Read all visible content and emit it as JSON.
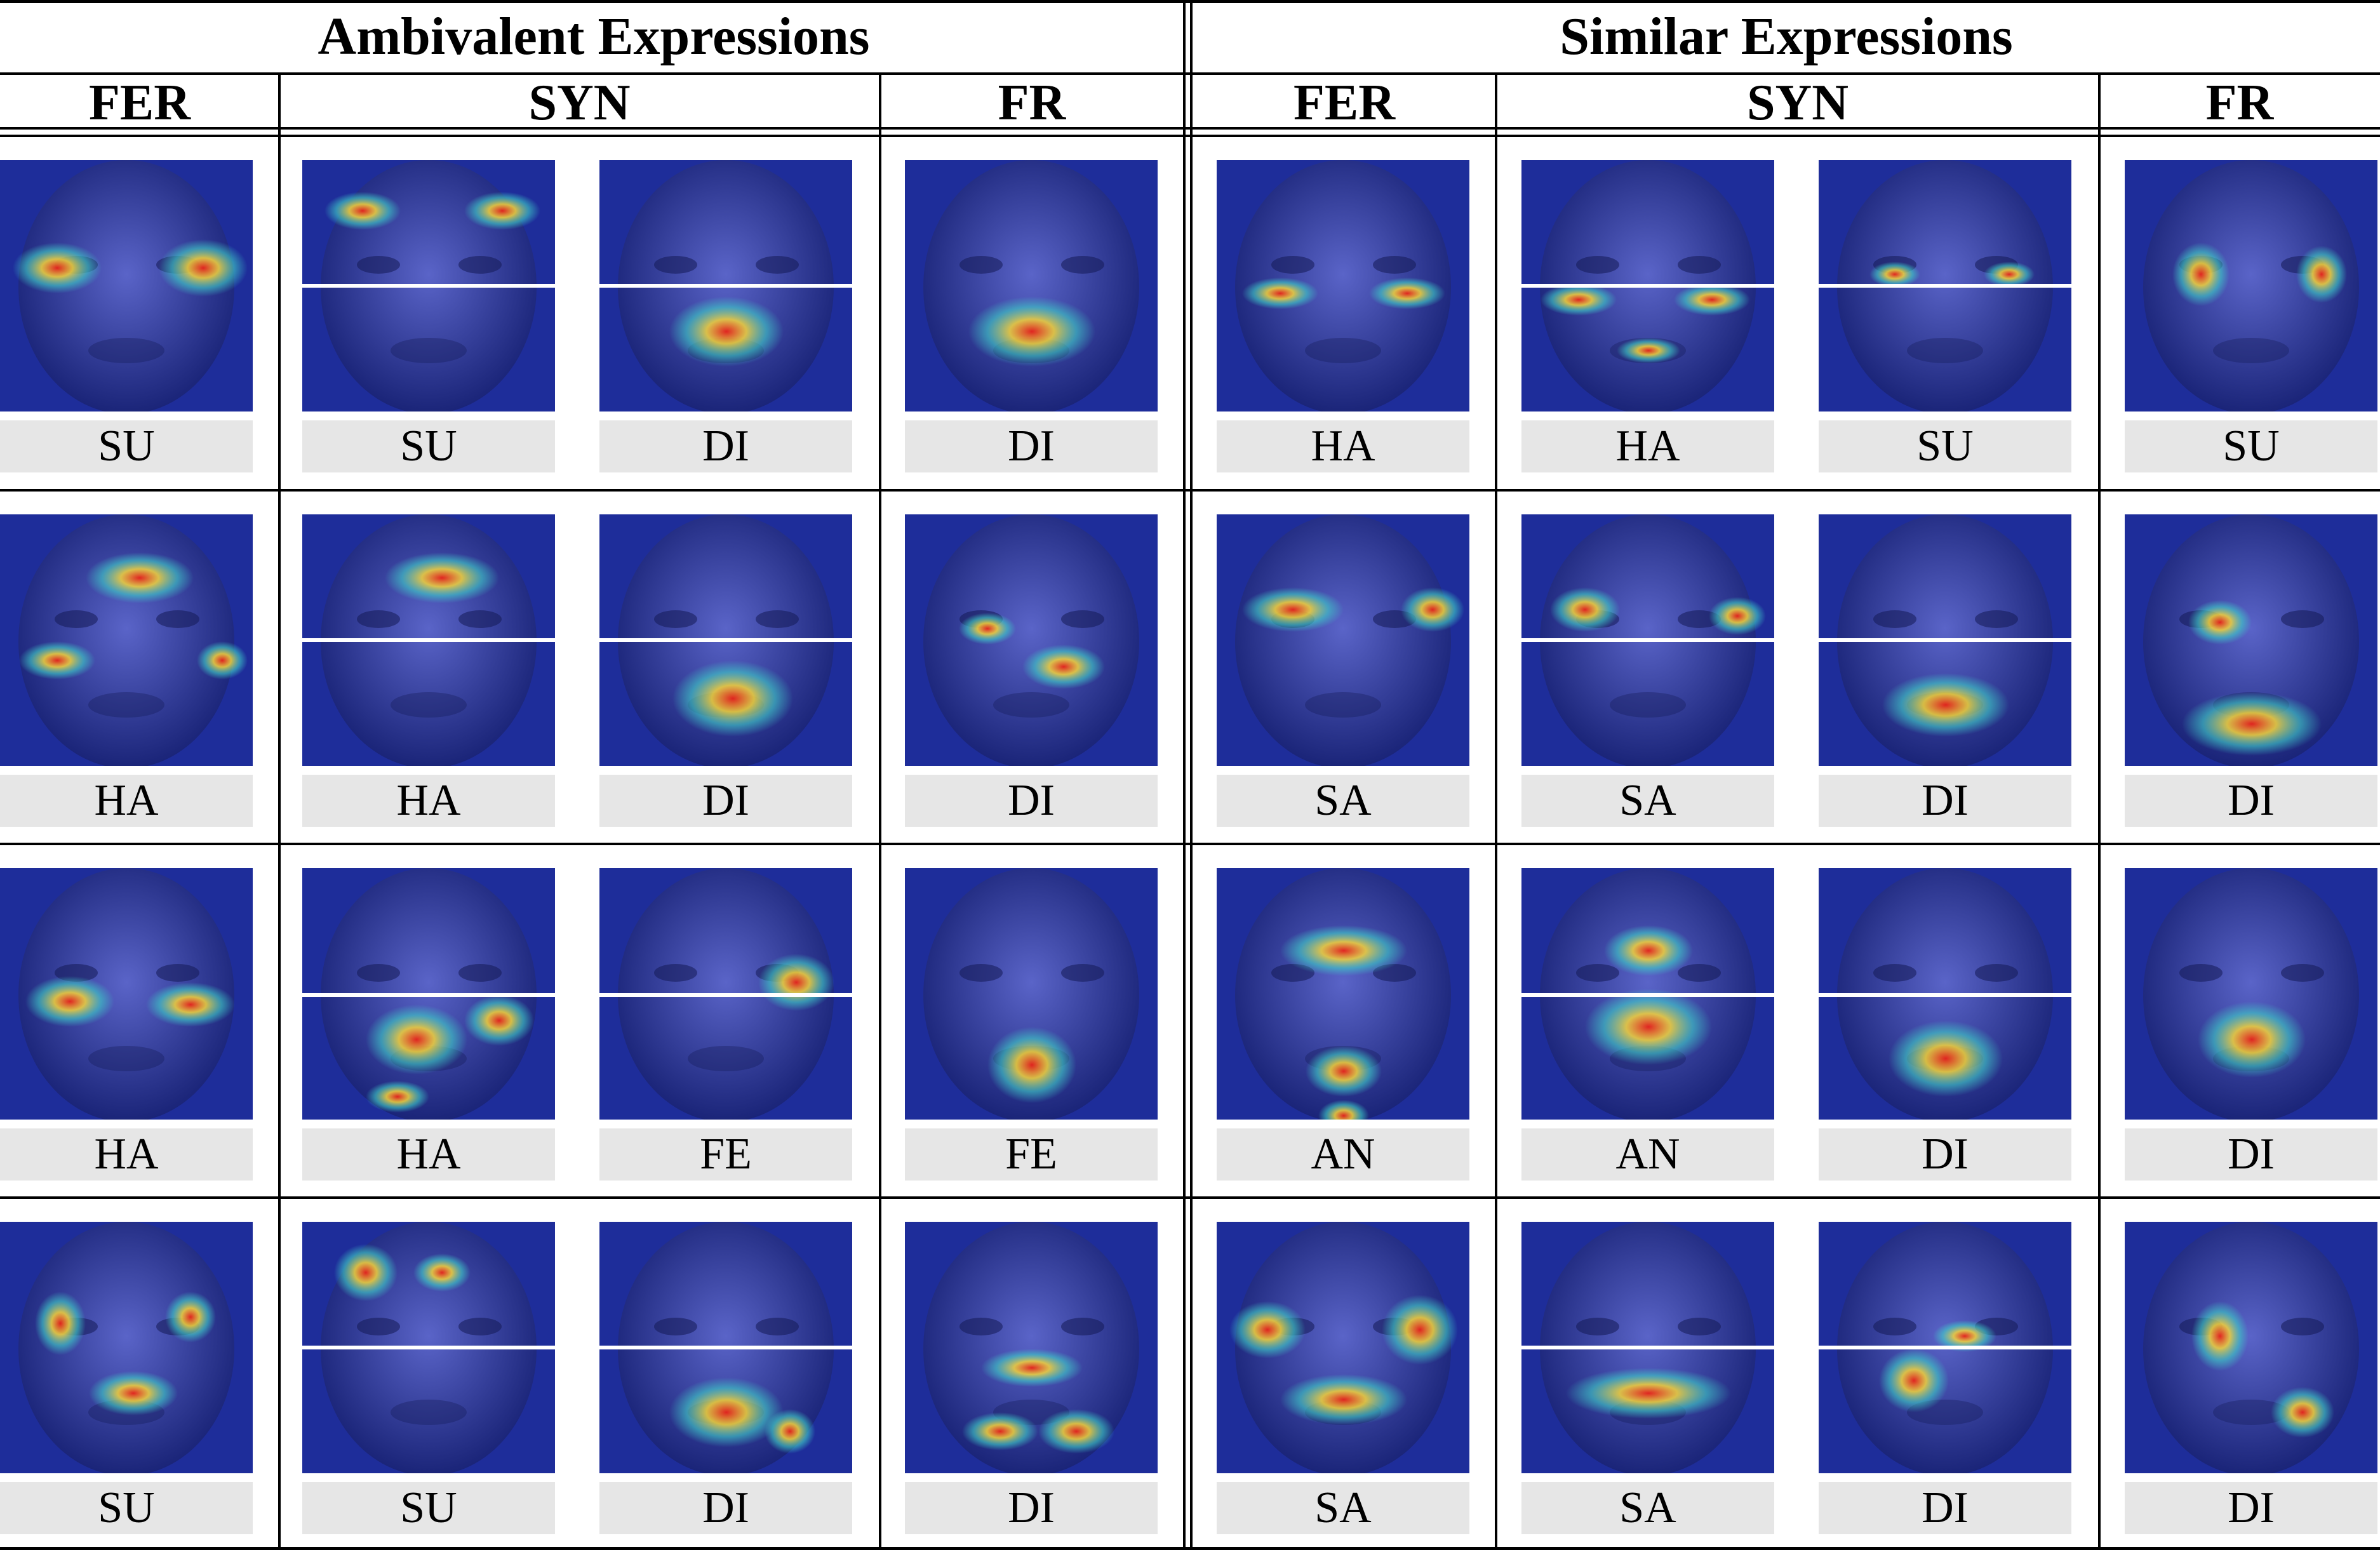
{
  "sections": {
    "ambivalent": "Ambivalent Expressions",
    "similar": "Similar Expressions"
  },
  "columns": {
    "left_fer": "FER",
    "left_syn": "SYN",
    "left_fr": "FR",
    "right_fer": "FER",
    "right_syn": "SYN",
    "right_fr": "FR"
  },
  "rows": [
    {
      "ambivalent": {
        "fer": "SU",
        "syn_a": "SU",
        "syn_b": "DI",
        "fr": "DI"
      },
      "similar": {
        "fer": "HA",
        "syn_a": "HA",
        "syn_b": "SU",
        "fr": "SU"
      }
    },
    {
      "ambivalent": {
        "fer": "HA",
        "syn_a": "HA",
        "syn_b": "DI",
        "fr": "DI"
      },
      "similar": {
        "fer": "SA",
        "syn_a": "SA",
        "syn_b": "DI",
        "fr": "DI"
      }
    },
    {
      "ambivalent": {
        "fer": "HA",
        "syn_a": "HA",
        "syn_b": "FE",
        "fr": "FE"
      },
      "similar": {
        "fer": "AN",
        "syn_a": "AN",
        "syn_b": "DI",
        "fr": "DI"
      }
    },
    {
      "ambivalent": {
        "fer": "SU",
        "syn_a": "SU",
        "syn_b": "DI",
        "fr": "DI"
      },
      "similar": {
        "fer": "SA",
        "syn_a": "SA",
        "syn_b": "DI",
        "fr": "DI"
      }
    }
  ],
  "colors": {
    "heatmap_base": "#1e2d9a",
    "heat_hot": "#e8231a",
    "heat_warm": "#f5d43a",
    "heat_mid": "#3fd0c8",
    "label_bg": "#e6e6e6"
  }
}
